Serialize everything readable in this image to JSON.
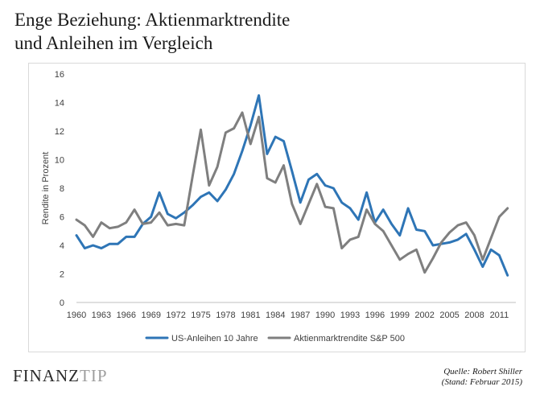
{
  "title": {
    "line1": "Enge Beziehung:  Aktienmarktrendite",
    "line2": "und Anleihen  im Vergleich"
  },
  "logo": {
    "part1": "FINANZ",
    "part2": "TIP"
  },
  "source": {
    "line1": "Quelle: Robert Shiller",
    "line2": "(Stand: Februar 2015)"
  },
  "chart_data": {
    "type": "line",
    "xlabel": "",
    "ylabel": "Rendite in Prozent",
    "xlim": [
      1960,
      2013
    ],
    "ylim": [
      0,
      16
    ],
    "x_ticks": [
      1960,
      1963,
      1966,
      1969,
      1972,
      1975,
      1978,
      1981,
      1984,
      1987,
      1990,
      1993,
      1996,
      1999,
      2002,
      2005,
      2008,
      2011
    ],
    "y_ticks": [
      0,
      2,
      4,
      6,
      8,
      10,
      12,
      14,
      16
    ],
    "grid": false,
    "legend_position": "bottom",
    "x": [
      1960,
      1961,
      1962,
      1963,
      1964,
      1965,
      1966,
      1967,
      1968,
      1969,
      1970,
      1971,
      1972,
      1973,
      1974,
      1975,
      1976,
      1977,
      1978,
      1979,
      1980,
      1981,
      1982,
      1983,
      1984,
      1985,
      1986,
      1987,
      1988,
      1989,
      1990,
      1991,
      1992,
      1993,
      1994,
      1995,
      1996,
      1997,
      1998,
      1999,
      2000,
      2001,
      2002,
      2003,
      2004,
      2005,
      2006,
      2007,
      2008,
      2009,
      2010,
      2011,
      2012,
      2013
    ],
    "series": [
      {
        "name": "US-Anleihen 10 Jahre",
        "color": "#2e75b6",
        "values": [
          4.7,
          3.8,
          4.0,
          3.8,
          4.1,
          4.1,
          4.6,
          4.6,
          5.5,
          6.0,
          7.7,
          6.2,
          5.9,
          6.3,
          6.8,
          7.4,
          7.7,
          7.1,
          7.9,
          9.0,
          10.6,
          12.4,
          14.5,
          10.4,
          11.6,
          11.3,
          9.2,
          7.0,
          8.6,
          9.0,
          8.2,
          8.0,
          7.0,
          6.6,
          5.8,
          7.7,
          5.6,
          6.5,
          5.5,
          4.7,
          6.6,
          5.1,
          5.0,
          4.0,
          4.1,
          4.2,
          4.4,
          4.8,
          3.7,
          2.5,
          3.7,
          3.3,
          1.9,
          null
        ]
      },
      {
        "name": "Aktienmarktrendite S&P 500",
        "color": "#7f7f7f",
        "values": [
          5.8,
          5.4,
          4.6,
          5.6,
          5.2,
          5.3,
          5.6,
          6.5,
          5.5,
          5.6,
          6.3,
          5.4,
          5.5,
          5.4,
          8.8,
          12.1,
          8.2,
          9.5,
          11.9,
          12.2,
          13.3,
          11.1,
          13.0,
          8.7,
          8.4,
          9.6,
          6.9,
          5.5,
          6.9,
          8.3,
          6.7,
          6.6,
          3.8,
          4.4,
          4.6,
          6.5,
          5.5,
          5.0,
          4.0,
          3.0,
          3.4,
          3.7,
          2.1,
          3.1,
          4.2,
          4.9,
          5.4,
          5.6,
          4.7,
          3.0,
          4.5,
          6.0,
          6.6,
          null
        ]
      }
    ]
  }
}
